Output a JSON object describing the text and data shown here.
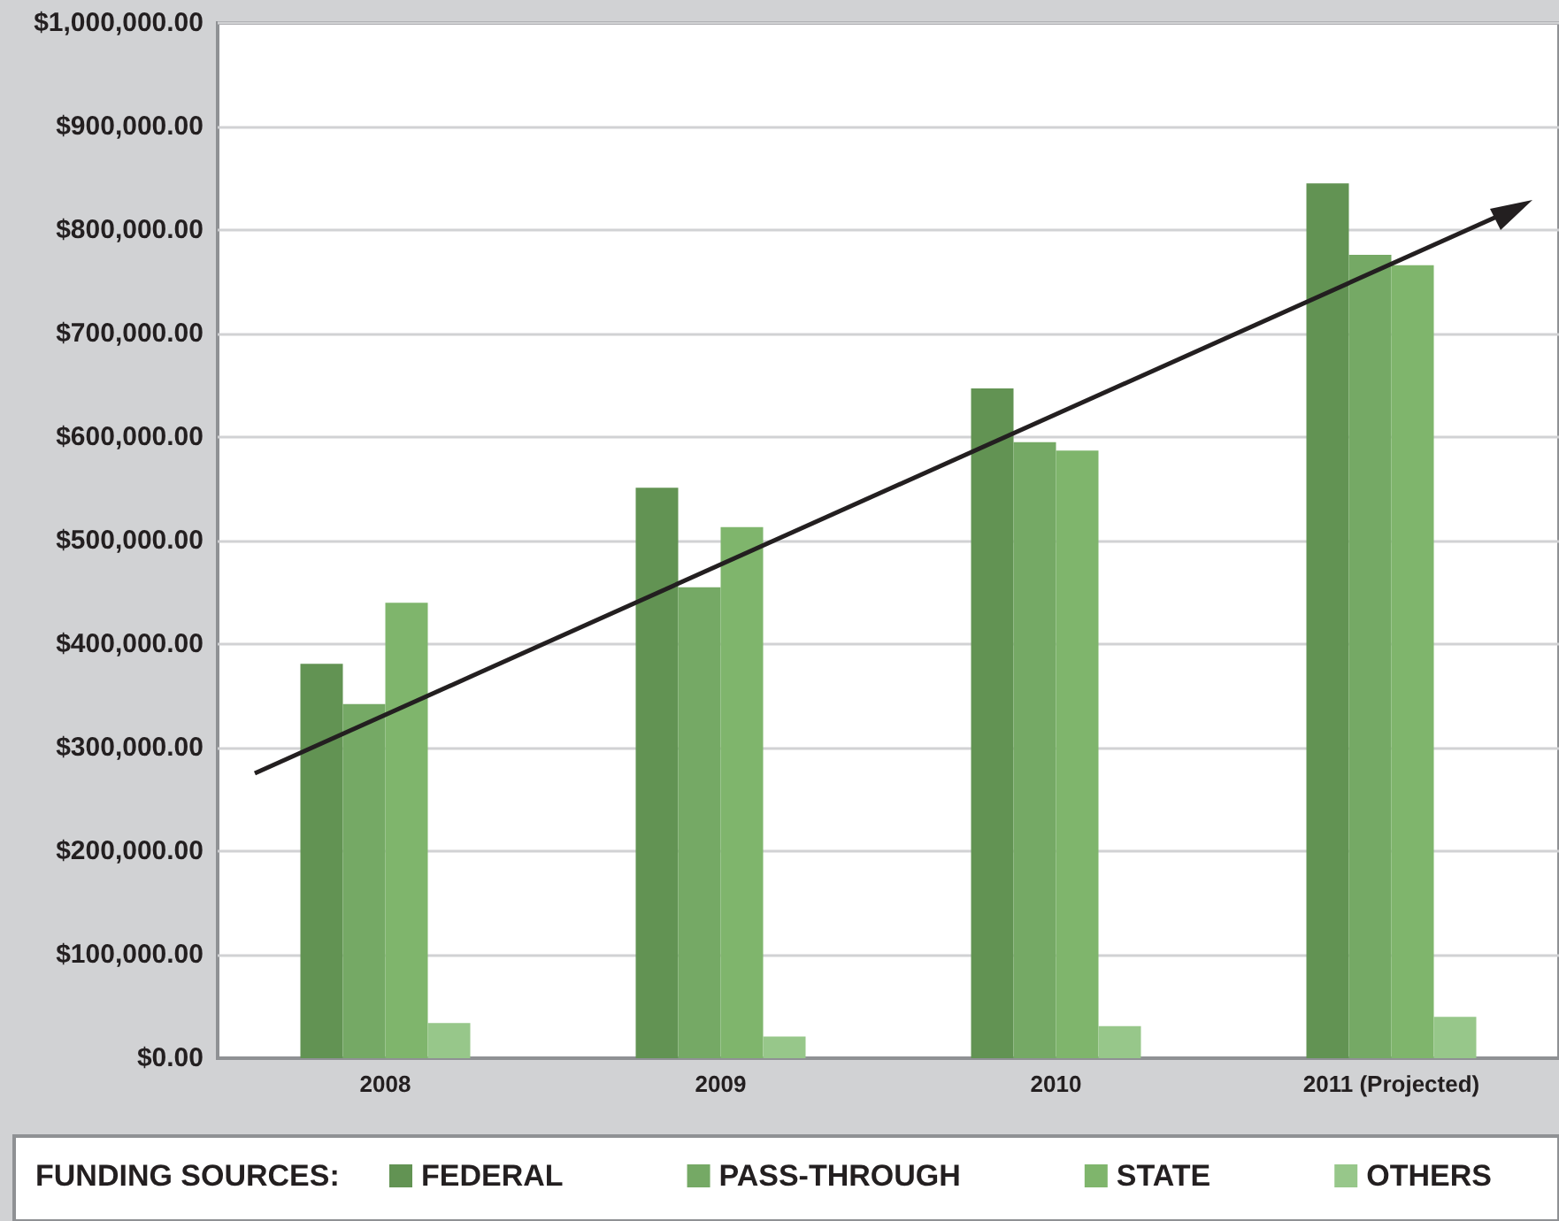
{
  "chart_data": {
    "type": "bar",
    "categories": [
      "2008",
      "2009",
      "2010",
      "2011 (Projected)"
    ],
    "series": [
      {
        "name": "FEDERAL",
        "color": "#629353",
        "values": [
          381000,
          551000,
          647000,
          845000
        ]
      },
      {
        "name": "PASS-THROUGH",
        "color": "#75a965",
        "values": [
          342000,
          455000,
          595000,
          776000
        ]
      },
      {
        "name": "STATE",
        "color": "#7fb56c",
        "values": [
          440000,
          513000,
          587000,
          766000
        ]
      },
      {
        "name": "OTHERS",
        "color": "#97c78a",
        "values": [
          34000,
          21000,
          31000,
          40000
        ]
      }
    ],
    "ylim": [
      0,
      1000000
    ],
    "yticks": [
      {
        "value": 0,
        "label": "$0.00"
      },
      {
        "value": 100000,
        "label": "$100,000.00"
      },
      {
        "value": 200000,
        "label": "$200,000.00"
      },
      {
        "value": 300000,
        "label": "$300,000.00"
      },
      {
        "value": 400000,
        "label": "$400,000.00"
      },
      {
        "value": 500000,
        "label": "$500,000.00"
      },
      {
        "value": 600000,
        "label": "$600,000.00"
      },
      {
        "value": 700000,
        "label": "$700,000.00"
      },
      {
        "value": 800000,
        "label": "$800,000.00"
      },
      {
        "value": 900000,
        "label": "$900,000.00"
      },
      {
        "value": 1000000,
        "label": "$1,000,000.00"
      }
    ],
    "grid": "y",
    "legend": "bottom",
    "legend_title": "FUNDING SOURCES:"
  }
}
